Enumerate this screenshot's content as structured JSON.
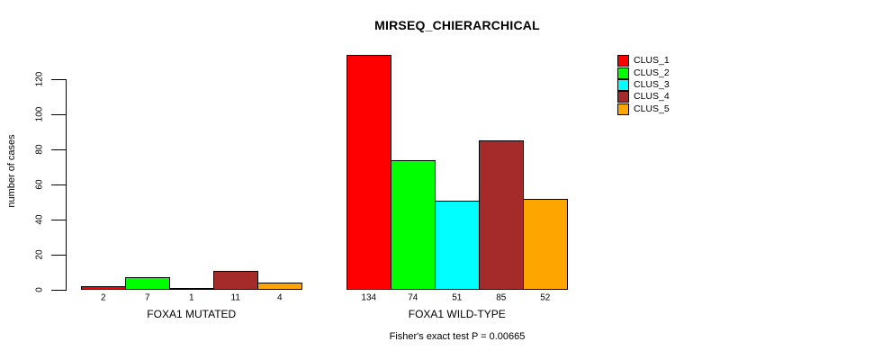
{
  "chart_data": {
    "type": "bar",
    "title": "MIRSEQ_CHIERARCHICAL",
    "ylabel": "number of cases",
    "xlabel": "",
    "footnote": "Fisher's exact test P = 0.00665",
    "ylim": [
      0,
      120
    ],
    "yticks": [
      0,
      20,
      40,
      60,
      80,
      100,
      120
    ],
    "grid": false,
    "legend_position": "top-right",
    "bar_value_labels_shown": true,
    "categories": [
      "FOXA1 MUTATED",
      "FOXA1 WILD-TYPE"
    ],
    "series": [
      {
        "name": "CLUS_1",
        "color": "#ff0000",
        "values": [
          2,
          134
        ]
      },
      {
        "name": "CLUS_2",
        "color": "#00ff00",
        "values": [
          7,
          74
        ]
      },
      {
        "name": "CLUS_3",
        "color": "#00ffff",
        "values": [
          1,
          51
        ]
      },
      {
        "name": "CLUS_4",
        "color": "#a52a2a",
        "values": [
          11,
          85
        ]
      },
      {
        "name": "CLUS_5",
        "color": "#ffa500",
        "values": [
          4,
          52
        ]
      }
    ],
    "axis_color": "#000000",
    "background": "#ffffff"
  }
}
